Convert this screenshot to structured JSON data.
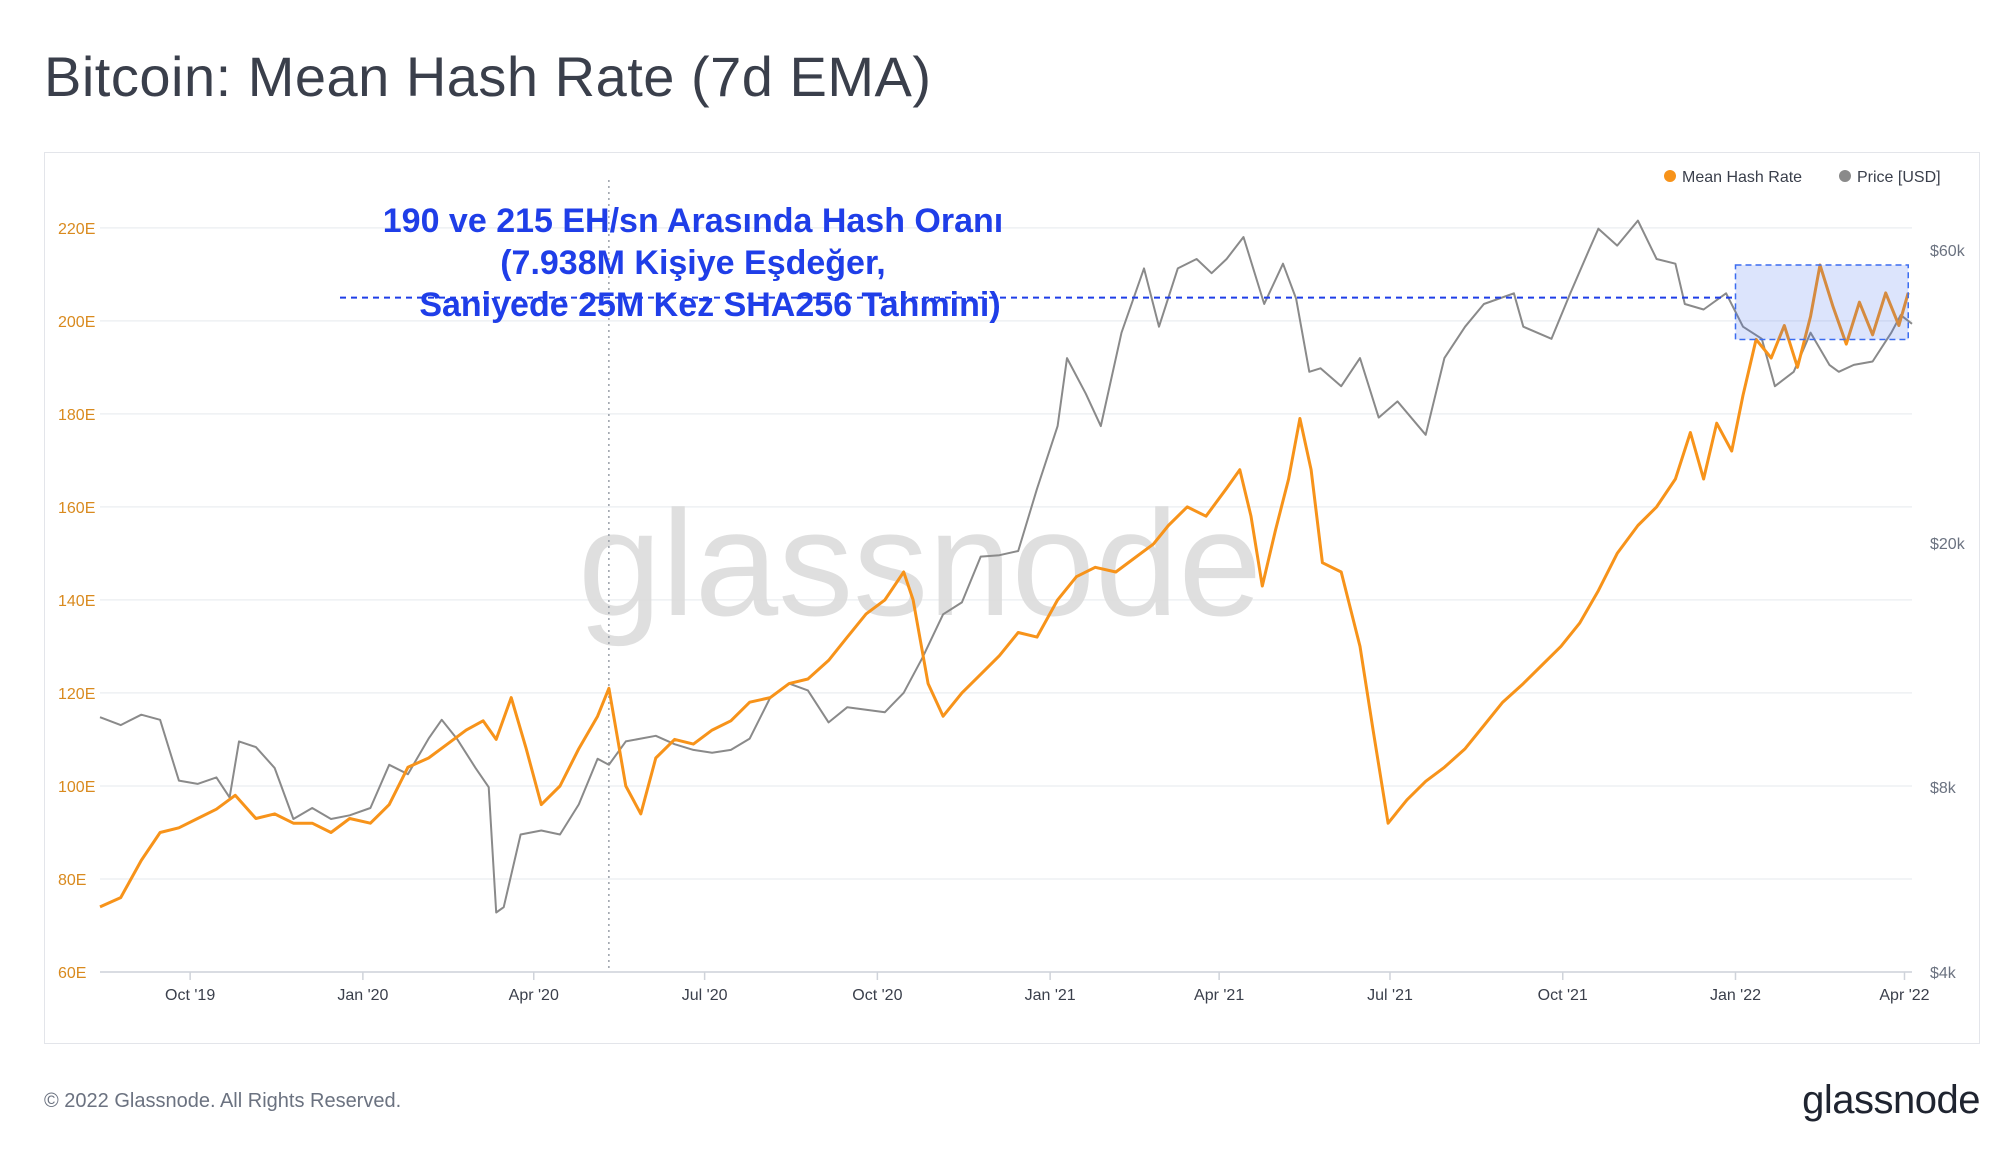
{
  "title": "Bitcoin: Mean Hash Rate (7d EMA)",
  "footer": {
    "copyright": "© 2022 Glassnode. All Rights Reserved.",
    "brand": "glassnode"
  },
  "watermark": "glassnode",
  "annotation": {
    "lines": [
      "190 ve 215 EH/sn Arasında Hash Oranı",
      "(7.938M Kişiye Eşdeğer,",
      "Saniyede 25M Kez SHA256 Tahmini)"
    ],
    "color": "#1f3ee8"
  },
  "chart_data": {
    "type": "line",
    "title": "Bitcoin: Mean Hash Rate (7d EMA)",
    "legend": {
      "placement": "top-right",
      "entries": [
        "Mean Hash Rate",
        "Price [USD]"
      ]
    },
    "x_ticks": [
      "Oct '19",
      "Jan '20",
      "Apr '20",
      "Jul '20",
      "Oct '20",
      "Jan '21",
      "Apr '21",
      "Jul '21",
      "Oct '21",
      "Jan '22",
      "Apr '22"
    ],
    "x_range": [
      "2019-08-14",
      "2022-04-05"
    ],
    "y_left": {
      "ticks": [
        "60E",
        "80E",
        "100E",
        "120E",
        "140E",
        "160E",
        "180E",
        "200E",
        "220E"
      ],
      "range": [
        60,
        232
      ],
      "unit": "EH/s"
    },
    "y_right": {
      "ticks": [
        "$4k",
        "$8k",
        "$20k",
        "$60k"
      ],
      "tick_values": [
        4000,
        8000,
        20000,
        60000
      ],
      "scale": "log"
    },
    "grid": true,
    "reference_line": {
      "y": 205,
      "style": "dashed",
      "color": "#1f3ee8"
    },
    "highlight_box": {
      "x": [
        "2022-01-01",
        "2022-04-03"
      ],
      "y": [
        196,
        212
      ]
    },
    "vertical_marker": {
      "x": "2020-05-11"
    },
    "series": [
      {
        "name": "Mean Hash Rate",
        "color": "#f7931a",
        "points": [
          [
            "2019-08-14",
            74
          ],
          [
            "2019-08-25",
            76
          ],
          [
            "2019-09-05",
            84
          ],
          [
            "2019-09-15",
            90
          ],
          [
            "2019-09-25",
            91
          ],
          [
            "2019-10-05",
            93
          ],
          [
            "2019-10-15",
            95
          ],
          [
            "2019-10-25",
            98
          ],
          [
            "2019-11-05",
            93
          ],
          [
            "2019-11-15",
            94
          ],
          [
            "2019-11-25",
            92
          ],
          [
            "2019-12-05",
            92
          ],
          [
            "2019-12-15",
            90
          ],
          [
            "2019-12-25",
            93
          ],
          [
            "2020-01-05",
            92
          ],
          [
            "2020-01-15",
            96
          ],
          [
            "2020-01-25",
            104
          ],
          [
            "2020-02-05",
            106
          ],
          [
            "2020-02-15",
            109
          ],
          [
            "2020-02-25",
            112
          ],
          [
            "2020-03-05",
            114
          ],
          [
            "2020-03-12",
            110
          ],
          [
            "2020-03-20",
            119
          ],
          [
            "2020-03-28",
            108
          ],
          [
            "2020-04-05",
            96
          ],
          [
            "2020-04-15",
            100
          ],
          [
            "2020-04-25",
            108
          ],
          [
            "2020-05-05",
            115
          ],
          [
            "2020-05-11",
            121
          ],
          [
            "2020-05-20",
            100
          ],
          [
            "2020-05-28",
            94
          ],
          [
            "2020-06-05",
            106
          ],
          [
            "2020-06-15",
            110
          ],
          [
            "2020-06-25",
            109
          ],
          [
            "2020-07-05",
            112
          ],
          [
            "2020-07-15",
            114
          ],
          [
            "2020-07-25",
            118
          ],
          [
            "2020-08-05",
            119
          ],
          [
            "2020-08-15",
            122
          ],
          [
            "2020-08-25",
            123
          ],
          [
            "2020-09-05",
            127
          ],
          [
            "2020-09-15",
            132
          ],
          [
            "2020-09-25",
            137
          ],
          [
            "2020-10-05",
            140
          ],
          [
            "2020-10-15",
            146
          ],
          [
            "2020-10-20",
            140
          ],
          [
            "2020-10-28",
            122
          ],
          [
            "2020-11-05",
            115
          ],
          [
            "2020-11-15",
            120
          ],
          [
            "2020-11-25",
            124
          ],
          [
            "2020-12-05",
            128
          ],
          [
            "2020-12-15",
            133
          ],
          [
            "2020-12-25",
            132
          ],
          [
            "2021-01-05",
            140
          ],
          [
            "2021-01-15",
            145
          ],
          [
            "2021-01-25",
            147
          ],
          [
            "2021-02-05",
            146
          ],
          [
            "2021-02-15",
            149
          ],
          [
            "2021-02-25",
            152
          ],
          [
            "2021-03-05",
            156
          ],
          [
            "2021-03-15",
            160
          ],
          [
            "2021-03-25",
            158
          ],
          [
            "2021-04-05",
            164
          ],
          [
            "2021-04-12",
            168
          ],
          [
            "2021-04-18",
            158
          ],
          [
            "2021-04-24",
            143
          ],
          [
            "2021-05-01",
            155
          ],
          [
            "2021-05-08",
            166
          ],
          [
            "2021-05-14",
            179
          ],
          [
            "2021-05-20",
            168
          ],
          [
            "2021-05-26",
            148
          ],
          [
            "2021-06-05",
            146
          ],
          [
            "2021-06-15",
            130
          ],
          [
            "2021-06-22",
            112
          ],
          [
            "2021-06-30",
            92
          ],
          [
            "2021-07-10",
            97
          ],
          [
            "2021-07-20",
            101
          ],
          [
            "2021-07-30",
            104
          ],
          [
            "2021-08-10",
            108
          ],
          [
            "2021-08-20",
            113
          ],
          [
            "2021-08-30",
            118
          ],
          [
            "2021-09-10",
            122
          ],
          [
            "2021-09-20",
            126
          ],
          [
            "2021-09-30",
            130
          ],
          [
            "2021-10-10",
            135
          ],
          [
            "2021-10-20",
            142
          ],
          [
            "2021-10-30",
            150
          ],
          [
            "2021-11-10",
            156
          ],
          [
            "2021-11-20",
            160
          ],
          [
            "2021-11-30",
            166
          ],
          [
            "2021-12-08",
            176
          ],
          [
            "2021-12-15",
            166
          ],
          [
            "2021-12-22",
            178
          ],
          [
            "2021-12-30",
            172
          ],
          [
            "2022-01-05",
            184
          ],
          [
            "2022-01-12",
            196
          ],
          [
            "2022-01-20",
            192
          ],
          [
            "2022-01-27",
            199
          ],
          [
            "2022-02-03",
            190
          ],
          [
            "2022-02-10",
            201
          ],
          [
            "2022-02-15",
            212
          ],
          [
            "2022-02-22",
            203
          ],
          [
            "2022-03-01",
            195
          ],
          [
            "2022-03-08",
            204
          ],
          [
            "2022-03-15",
            197
          ],
          [
            "2022-03-22",
            206
          ],
          [
            "2022-03-29",
            199
          ],
          [
            "2022-04-03",
            206
          ]
        ]
      },
      {
        "name": "Price [USD]",
        "color": "#8a8a8a",
        "points": [
          [
            "2019-08-14",
            10400
          ],
          [
            "2019-08-25",
            10100
          ],
          [
            "2019-09-05",
            10500
          ],
          [
            "2019-09-15",
            10300
          ],
          [
            "2019-09-25",
            8200
          ],
          [
            "2019-10-05",
            8100
          ],
          [
            "2019-10-15",
            8300
          ],
          [
            "2019-10-22",
            7700
          ],
          [
            "2019-10-27",
            9500
          ],
          [
            "2019-11-05",
            9300
          ],
          [
            "2019-11-15",
            8600
          ],
          [
            "2019-11-25",
            7100
          ],
          [
            "2019-12-05",
            7400
          ],
          [
            "2019-12-15",
            7100
          ],
          [
            "2019-12-25",
            7200
          ],
          [
            "2020-01-05",
            7400
          ],
          [
            "2020-01-15",
            8700
          ],
          [
            "2020-01-25",
            8400
          ],
          [
            "2020-02-05",
            9600
          ],
          [
            "2020-02-12",
            10300
          ],
          [
            "2020-02-20",
            9600
          ],
          [
            "2020-03-01",
            8600
          ],
          [
            "2020-03-08",
            8000
          ],
          [
            "2020-03-12",
            5000
          ],
          [
            "2020-03-16",
            5100
          ],
          [
            "2020-03-25",
            6700
          ],
          [
            "2020-04-05",
            6800
          ],
          [
            "2020-04-15",
            6700
          ],
          [
            "2020-04-25",
            7500
          ],
          [
            "2020-05-05",
            8900
          ],
          [
            "2020-05-11",
            8700
          ],
          [
            "2020-05-20",
            9500
          ],
          [
            "2020-06-05",
            9700
          ],
          [
            "2020-06-15",
            9400
          ],
          [
            "2020-06-25",
            9200
          ],
          [
            "2020-07-05",
            9100
          ],
          [
            "2020-07-15",
            9200
          ],
          [
            "2020-07-25",
            9600
          ],
          [
            "2020-08-05",
            11200
          ],
          [
            "2020-08-15",
            11800
          ],
          [
            "2020-08-25",
            11500
          ],
          [
            "2020-09-05",
            10200
          ],
          [
            "2020-09-15",
            10800
          ],
          [
            "2020-09-25",
            10700
          ],
          [
            "2020-10-05",
            10600
          ],
          [
            "2020-10-15",
            11400
          ],
          [
            "2020-10-25",
            13000
          ],
          [
            "2020-11-05",
            15300
          ],
          [
            "2020-11-15",
            16000
          ],
          [
            "2020-11-25",
            19000
          ],
          [
            "2020-12-05",
            19100
          ],
          [
            "2020-12-15",
            19400
          ],
          [
            "2020-12-25",
            24500
          ],
          [
            "2021-01-05",
            31000
          ],
          [
            "2021-01-10",
            40000
          ],
          [
            "2021-01-20",
            35000
          ],
          [
            "2021-01-28",
            31000
          ],
          [
            "2021-02-08",
            44000
          ],
          [
            "2021-02-20",
            56000
          ],
          [
            "2021-02-28",
            45000
          ],
          [
            "2021-03-10",
            56000
          ],
          [
            "2021-03-20",
            58000
          ],
          [
            "2021-03-28",
            55000
          ],
          [
            "2021-04-05",
            58000
          ],
          [
            "2021-04-14",
            63000
          ],
          [
            "2021-04-25",
            49000
          ],
          [
            "2021-05-05",
            57000
          ],
          [
            "2021-05-12",
            50000
          ],
          [
            "2021-05-19",
            38000
          ],
          [
            "2021-05-25",
            38500
          ],
          [
            "2021-06-05",
            36000
          ],
          [
            "2021-06-15",
            40000
          ],
          [
            "2021-06-25",
            32000
          ],
          [
            "2021-07-05",
            34000
          ],
          [
            "2021-07-20",
            30000
          ],
          [
            "2021-07-30",
            40000
          ],
          [
            "2021-08-10",
            45000
          ],
          [
            "2021-08-20",
            49000
          ],
          [
            "2021-09-05",
            51000
          ],
          [
            "2021-09-10",
            45000
          ],
          [
            "2021-09-25",
            43000
          ],
          [
            "2021-10-05",
            51000
          ],
          [
            "2021-10-15",
            60000
          ],
          [
            "2021-10-20",
            65000
          ],
          [
            "2021-10-30",
            61000
          ],
          [
            "2021-11-10",
            67000
          ],
          [
            "2021-11-20",
            58000
          ],
          [
            "2021-11-30",
            57000
          ],
          [
            "2021-12-05",
            49000
          ],
          [
            "2021-12-15",
            48000
          ],
          [
            "2021-12-27",
            51000
          ],
          [
            "2022-01-05",
            45000
          ],
          [
            "2022-01-15",
            43000
          ],
          [
            "2022-01-22",
            36000
          ],
          [
            "2022-02-01",
            38000
          ],
          [
            "2022-02-10",
            44000
          ],
          [
            "2022-02-20",
            39000
          ],
          [
            "2022-02-25",
            38000
          ],
          [
            "2022-03-05",
            39000
          ],
          [
            "2022-03-15",
            39500
          ],
          [
            "2022-03-25",
            44000
          ],
          [
            "2022-03-30",
            47000
          ],
          [
            "2022-04-05",
            45500
          ]
        ]
      }
    ]
  }
}
